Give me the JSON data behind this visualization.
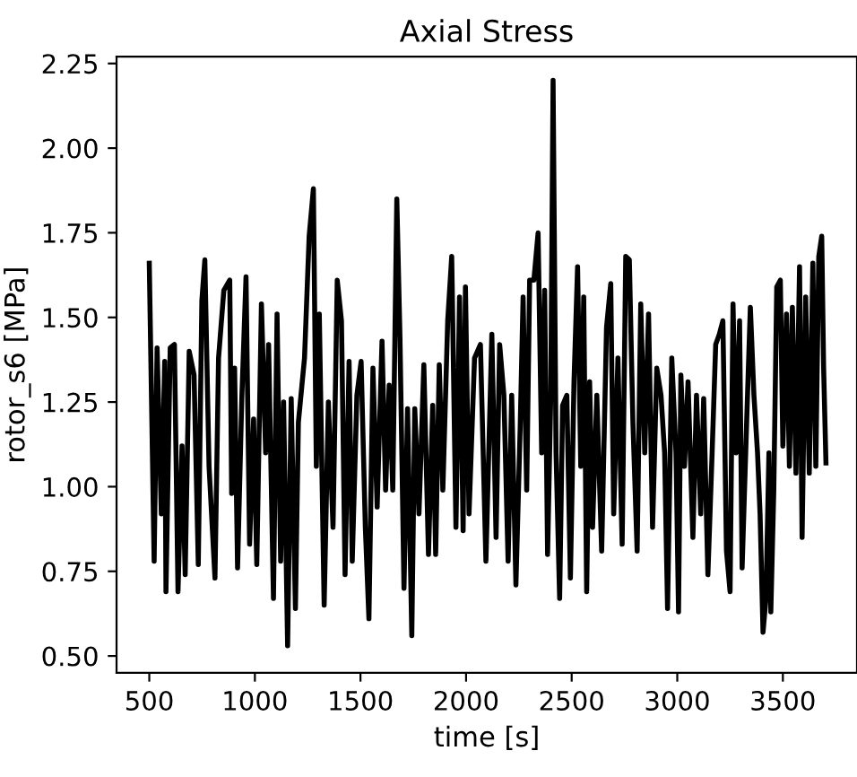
{
  "chart_data": {
    "type": "line",
    "title": "Axial Stress",
    "xlabel": "time [s]",
    "ylabel": "rotor_s6 [MPa]",
    "xlim": [
      345,
      3851
    ],
    "ylim": [
      0.45,
      2.27
    ],
    "xticks": [
      500,
      1000,
      1500,
      2000,
      2500,
      3000,
      3500
    ],
    "yticks": [
      {
        "value": 0.5,
        "label": "0.50"
      },
      {
        "value": 0.75,
        "label": "0.75"
      },
      {
        "value": 1.0,
        "label": "1.00"
      },
      {
        "value": 1.25,
        "label": "1.25"
      },
      {
        "value": 1.5,
        "label": "1.50"
      },
      {
        "value": 1.75,
        "label": "1.75"
      },
      {
        "value": 2.0,
        "label": "2.00"
      },
      {
        "value": 2.25,
        "label": "2.25"
      }
    ],
    "grid": false,
    "legend": false,
    "marker": "none",
    "line_style": "solid",
    "series": [
      {
        "color": "#000000",
        "x": [
          500,
          523,
          537,
          557,
          573,
          579,
          599,
          619,
          636,
          655,
          670,
          689,
          712,
          732,
          749,
          763,
          783,
          811,
          828,
          853,
          881,
          890,
          904,
          918,
          938,
          958,
          975,
          994,
          1009,
          1031,
          1051,
          1065,
          1088,
          1105,
          1122,
          1136,
          1155,
          1172,
          1192,
          1206,
          1235,
          1257,
          1277,
          1291,
          1305,
          1328,
          1348,
          1370,
          1390,
          1410,
          1427,
          1446,
          1461,
          1483,
          1503,
          1523,
          1540,
          1559,
          1579,
          1602,
          1619,
          1636,
          1653,
          1672,
          1687,
          1706,
          1723,
          1743,
          1757,
          1777,
          1800,
          1822,
          1842,
          1856,
          1873,
          1890,
          1913,
          1932,
          1952,
          1969,
          1986,
          1997,
          2014,
          2040,
          2068,
          2094,
          2122,
          2142,
          2159,
          2179,
          2199,
          2216,
          2236,
          2256,
          2270,
          2287,
          2301,
          2321,
          2341,
          2358,
          2372,
          2386,
          2401,
          2412,
          2426,
          2443,
          2457,
          2477,
          2494,
          2511,
          2528,
          2543,
          2557,
          2571,
          2585,
          2599,
          2619,
          2642,
          2665,
          2685,
          2699,
          2719,
          2739,
          2756,
          2773,
          2790,
          2810,
          2827,
          2846,
          2864,
          2883,
          2903,
          2923,
          2940,
          2954,
          2974,
          2994,
          3006,
          3017,
          3034,
          3051,
          3074,
          3091,
          3111,
          3125,
          3145,
          3165,
          3182,
          3199,
          3216,
          3233,
          3250,
          3264,
          3278,
          3295,
          3307,
          3329,
          3346,
          3363,
          3380,
          3392,
          3406,
          3420,
          3434,
          3443,
          3457,
          3471,
          3488,
          3500,
          3517,
          3531,
          3545,
          3562,
          3579,
          3591,
          3608,
          3625,
          3642,
          3656,
          3670,
          3684,
          3693,
          3704
        ],
        "values": [
          1.66,
          0.78,
          1.41,
          0.92,
          1.37,
          0.69,
          1.41,
          1.42,
          0.69,
          1.12,
          0.74,
          1.4,
          1.33,
          0.77,
          1.55,
          1.67,
          1.06,
          0.73,
          1.38,
          1.58,
          1.61,
          0.98,
          1.35,
          0.76,
          1.26,
          1.62,
          0.83,
          1.2,
          0.77,
          1.54,
          1.1,
          1.42,
          0.67,
          1.51,
          0.78,
          1.25,
          0.53,
          1.26,
          0.64,
          1.19,
          1.38,
          1.74,
          1.88,
          1.06,
          1.51,
          0.65,
          1.25,
          0.88,
          1.61,
          1.49,
          0.74,
          1.37,
          0.78,
          1.27,
          1.37,
          0.88,
          0.61,
          1.35,
          0.94,
          1.43,
          0.99,
          1.3,
          0.99,
          1.85,
          1.44,
          0.7,
          1.23,
          0.56,
          1.23,
          0.92,
          1.36,
          0.8,
          1.24,
          0.8,
          1.36,
          0.99,
          1.49,
          1.68,
          0.88,
          1.56,
          0.87,
          1.59,
          0.92,
          1.38,
          1.42,
          0.78,
          1.45,
          0.85,
          1.42,
          1.27,
          0.78,
          1.27,
          0.71,
          1.17,
          1.56,
          0.99,
          1.61,
          1.61,
          1.75,
          1.1,
          1.58,
          0.8,
          1.27,
          2.2,
          1.1,
          0.67,
          1.24,
          1.27,
          0.73,
          1.31,
          1.65,
          1.06,
          1.56,
          0.69,
          1.31,
          0.88,
          1.27,
          0.81,
          1.47,
          1.6,
          0.92,
          1.38,
          0.83,
          1.68,
          1.67,
          1.19,
          0.81,
          1.54,
          1.1,
          1.51,
          0.88,
          1.35,
          1.27,
          1.1,
          0.64,
          1.38,
          1.1,
          0.63,
          1.33,
          1.06,
          1.31,
          0.85,
          1.27,
          0.92,
          1.26,
          0.74,
          1.1,
          1.42,
          1.45,
          1.49,
          0.81,
          0.69,
          1.54,
          1.1,
          1.49,
          0.76,
          1.2,
          1.53,
          1.27,
          1.1,
          0.92,
          0.57,
          0.67,
          1.1,
          0.63,
          0.99,
          1.59,
          1.61,
          1.12,
          1.51,
          1.06,
          1.53,
          1.04,
          1.65,
          0.85,
          1.56,
          1.04,
          1.66,
          1.06,
          1.68,
          1.74,
          1.35,
          1.07
        ]
      }
    ]
  }
}
